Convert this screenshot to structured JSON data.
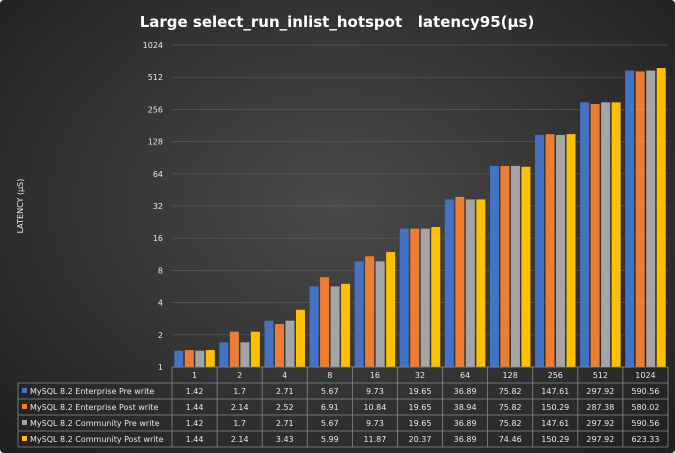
{
  "chart_data": {
    "type": "bar",
    "title": "Large select_run_inlist_hotspot   latency95(µs)",
    "ylabel": "LATENCY (µS)",
    "xlabel": "",
    "y_scale": "log2",
    "ylim": [
      1,
      1024
    ],
    "y_ticks": [
      "1",
      "2",
      "4",
      "8",
      "16",
      "32",
      "64",
      "128",
      "256",
      "512",
      "1024"
    ],
    "categories": [
      "1",
      "2",
      "4",
      "8",
      "16",
      "32",
      "64",
      "128",
      "256",
      "512",
      "1024"
    ],
    "grid": true,
    "legend": "data-table",
    "series": [
      {
        "name": "MySQL 8.2 Enterprise Pre write",
        "color": "#4472C4",
        "values": [
          1.42,
          1.7,
          2.71,
          5.67,
          9.73,
          19.65,
          36.89,
          75.82,
          147.61,
          297.92,
          590.56
        ]
      },
      {
        "name": "MySQL 8.2 Enterprise Post write",
        "color": "#ED7D31",
        "values": [
          1.44,
          2.14,
          2.52,
          6.91,
          10.84,
          19.65,
          38.94,
          75.82,
          150.29,
          287.38,
          580.02
        ]
      },
      {
        "name": "MySQL 8.2 Community Pre write",
        "color": "#A5A5A5",
        "values": [
          1.42,
          1.7,
          2.71,
          5.67,
          9.73,
          19.65,
          36.89,
          75.82,
          147.61,
          297.92,
          590.56
        ]
      },
      {
        "name": "MySQL 8.2 Community Post write",
        "color": "#FFC000",
        "values": [
          1.44,
          2.14,
          3.43,
          5.99,
          11.87,
          20.37,
          36.89,
          74.46,
          150.29,
          297.92,
          623.33
        ]
      }
    ]
  }
}
